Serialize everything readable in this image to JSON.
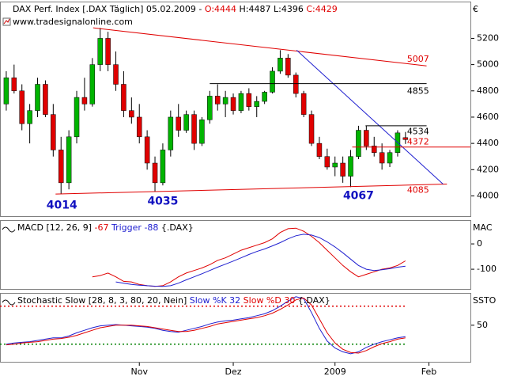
{
  "chart_data": [
    {
      "type": "candlestick",
      "title": [
        {
          "text": "DAX Perf. Index [.DAX  Täglich] 05.02.2009 - ",
          "color": "#000000"
        },
        {
          "text": "O:4444 ",
          "color": "#e00000"
        },
        {
          "text": "H:4487 ",
          "color": "#000000"
        },
        {
          "text": "L:4396 ",
          "color": "#000000"
        },
        {
          "text": "C:4429",
          "color": "#e00000"
        }
      ],
      "watermark": "www.tradesignalonline.com",
      "axis_label": "€",
      "up_color": "#00b400",
      "down_color": "#e00000",
      "x": [
        0,
        1,
        2,
        3,
        4,
        5,
        6,
        7,
        8,
        9,
        10,
        11,
        12,
        13,
        14,
        15,
        16,
        17,
        18,
        19,
        20,
        21,
        22,
        23,
        24,
        25,
        26,
        27,
        28,
        29,
        30,
        31,
        32,
        33,
        34,
        35,
        36,
        37,
        38,
        39,
        40,
        41,
        42,
        43,
        44,
        45,
        46,
        47,
        48,
        49,
        50,
        51
      ],
      "open": [
        4700,
        4900,
        4800,
        4550,
        4650,
        4850,
        4620,
        4350,
        4100,
        4450,
        4750,
        4700,
        5000,
        5200,
        5000,
        4850,
        4650,
        4600,
        4450,
        4250,
        4100,
        4350,
        4600,
        4500,
        4620,
        4400,
        4580,
        4760,
        4700,
        4750,
        4650,
        4780,
        4680,
        4720,
        4790,
        4950,
        5050,
        4920,
        4780,
        4620,
        4400,
        4300,
        4220,
        4250,
        4150,
        4300,
        4500,
        4380,
        4330,
        4250,
        4330,
        4444
      ],
      "high": [
        4950,
        5000,
        4850,
        4700,
        4900,
        4880,
        4700,
        4450,
        4500,
        4800,
        4900,
        5050,
        5280,
        5250,
        5100,
        4950,
        4750,
        4700,
        4500,
        4300,
        4400,
        4650,
        4700,
        4650,
        4650,
        4600,
        4800,
        4850,
        4800,
        4780,
        4800,
        4820,
        4760,
        4800,
        4980,
        5110,
        5080,
        4940,
        4800,
        4650,
        4450,
        4360,
        4300,
        4300,
        4350,
        4534,
        4534,
        4450,
        4400,
        4350,
        4500,
        4487
      ],
      "low": [
        4650,
        4780,
        4500,
        4400,
        4600,
        4600,
        4300,
        4014,
        4050,
        4400,
        4650,
        4680,
        4950,
        4950,
        4800,
        4600,
        4550,
        4400,
        4200,
        4035,
        4080,
        4300,
        4450,
        4480,
        4350,
        4380,
        4550,
        4650,
        4600,
        4620,
        4630,
        4650,
        4600,
        4700,
        4780,
        4930,
        4900,
        4750,
        4600,
        4380,
        4280,
        4200,
        4150,
        4100,
        4067,
        4280,
        4350,
        4300,
        4200,
        4220,
        4300,
        4396
      ],
      "close": [
        4900,
        4800,
        4550,
        4650,
        4850,
        4620,
        4350,
        4100,
        4450,
        4750,
        4700,
        5000,
        5200,
        5000,
        4850,
        4650,
        4600,
        4450,
        4250,
        4100,
        4350,
        4600,
        4500,
        4620,
        4400,
        4580,
        4760,
        4700,
        4750,
        4650,
        4780,
        4680,
        4720,
        4790,
        4950,
        5050,
        4920,
        4780,
        4620,
        4400,
        4300,
        4220,
        4250,
        4150,
        4300,
        4500,
        4380,
        4330,
        4250,
        4330,
        4480,
        4429
      ],
      "xlim": [
        -0.8,
        59.4
      ],
      "ylim": [
        3840,
        5480
      ],
      "yticks": [
        4000,
        4200,
        4400,
        4600,
        4800,
        5000,
        5200
      ],
      "lines": [
        {
          "color": "#e00000",
          "from": [
            6.3,
            4014
          ],
          "to": [
            56.3,
            4090
          ]
        },
        {
          "color": "#e00000",
          "from": [
            11.1,
            5280
          ],
          "to": [
            53.7,
            4990
          ]
        },
        {
          "color": "#2020d0",
          "from": [
            37.1,
            5110
          ],
          "to": [
            55.8,
            4090
          ]
        },
        {
          "color": "#000000",
          "from": [
            26,
            4855
          ],
          "to": [
            53.7,
            4855
          ]
        },
        {
          "color": "#000000",
          "from": [
            45.9,
            4534
          ],
          "to": [
            53.7,
            4534
          ]
        },
        {
          "color": "#e00000",
          "from": [
            44.2,
            4372
          ],
          "to": [
            59.3,
            4372
          ]
        }
      ],
      "annotations": [
        {
          "text": "5007",
          "x": 51.2,
          "y": 5040,
          "color": "#e00000",
          "bold": false
        },
        {
          "text": "4855",
          "x": 51.2,
          "y": 4796,
          "color": "#000000",
          "bold": false
        },
        {
          "text": "4534",
          "x": 51.2,
          "y": 4488,
          "color": "#000000",
          "bold": false
        },
        {
          "text": "4372",
          "x": 51.2,
          "y": 4410,
          "color": "#e00000",
          "bold": false
        },
        {
          "text": "4085",
          "x": 51.2,
          "y": 4042,
          "color": "#e00000",
          "bold": false
        },
        {
          "text": "4014",
          "x": 7.1,
          "y": 3927,
          "color": "#1010c0",
          "bold": true
        },
        {
          "text": "4035",
          "x": 20,
          "y": 3958,
          "color": "#1010c0",
          "bold": true
        },
        {
          "text": "4067",
          "x": 45,
          "y": 4000,
          "color": "#1010c0",
          "bold": true
        }
      ]
    },
    {
      "type": "line",
      "title": [
        {
          "text": "MACD [12, 26, 9] ",
          "color": "#000000"
        },
        {
          "text": "-67 ",
          "color": "#e00000"
        },
        {
          "text": "Trigger ",
          "color": "#2020d0"
        },
        {
          "text": "-88 ",
          "color": "#2020d0"
        },
        {
          "text": "{.DAX}",
          "color": "#000000"
        }
      ],
      "axis_label": "MAC",
      "xlim": [
        -0.8,
        59.4
      ],
      "ylim": [
        -181,
        94
      ],
      "yticks": [
        0,
        -100
      ],
      "series": [
        {
          "color": "#e00000",
          "values": [
            null,
            null,
            null,
            null,
            null,
            null,
            null,
            null,
            null,
            null,
            null,
            -130,
            -125,
            -115,
            -130,
            -148,
            -150,
            -160,
            -165,
            -168,
            -165,
            -150,
            -130,
            -115,
            -105,
            -95,
            -82,
            -65,
            -55,
            -40,
            -25,
            -15,
            -5,
            5,
            20,
            45,
            60,
            62,
            50,
            30,
            5,
            -25,
            -55,
            -85,
            -110,
            -130,
            -120,
            -110,
            -100,
            -95,
            -85,
            -67
          ]
        },
        {
          "color": "#2020d0",
          "values": [
            null,
            null,
            null,
            null,
            null,
            null,
            null,
            null,
            null,
            null,
            null,
            null,
            null,
            null,
            -150,
            -155,
            -160,
            -163,
            -165,
            -167,
            -168,
            -165,
            -155,
            -142,
            -130,
            -118,
            -105,
            -92,
            -80,
            -68,
            -55,
            -42,
            -30,
            -20,
            -8,
            5,
            20,
            32,
            38,
            35,
            25,
            8,
            -12,
            -35,
            -60,
            -85,
            -100,
            -105,
            -102,
            -98,
            -92,
            -88
          ]
        }
      ]
    },
    {
      "type": "line",
      "title": [
        {
          "text": "Stochastic Slow [28, 8, 3, 80, 20, Nein] ",
          "color": "#000000"
        },
        {
          "text": "Slow %K 32 ",
          "color": "#2020d0"
        },
        {
          "text": "Slow %D 30 ",
          "color": "#e00000"
        },
        {
          "text": "{.DAX}",
          "color": "#000000"
        }
      ],
      "axis_label": "SSTO",
      "xlim": [
        -0.8,
        59.4
      ],
      "ylim": [
        -9,
        101
      ],
      "yticks": [
        50
      ],
      "levels": [
        {
          "value": 80,
          "color": "#e00000"
        },
        {
          "value": 20,
          "color": "#008000"
        }
      ],
      "series": [
        {
          "color": "#2020d0",
          "values": [
            20,
            22,
            23,
            24,
            26,
            28,
            30,
            30,
            33,
            38,
            42,
            46,
            49,
            50,
            51,
            50,
            49,
            48,
            47,
            45,
            42,
            40,
            39,
            42,
            45,
            48,
            52,
            55,
            57,
            58,
            60,
            62,
            65,
            68,
            73,
            80,
            88,
            95,
            92,
            70,
            45,
            25,
            14,
            8,
            5,
            8,
            15,
            20,
            24,
            27,
            30,
            32
          ]
        },
        {
          "color": "#e00000",
          "values": [
            19,
            20,
            22,
            23,
            24,
            26,
            28,
            29,
            31,
            34,
            38,
            42,
            46,
            48,
            50,
            50,
            50,
            49,
            48,
            46,
            44,
            42,
            40,
            40,
            42,
            45,
            48,
            52,
            54,
            56,
            58,
            60,
            62,
            65,
            69,
            75,
            82,
            90,
            93,
            82,
            60,
            38,
            22,
            12,
            7,
            6,
            10,
            16,
            21,
            24,
            28,
            30
          ]
        }
      ],
      "xticks": [
        {
          "value": 17,
          "label": "Nov"
        },
        {
          "value": 29,
          "label": "Dez"
        },
        {
          "value": 42,
          "label": "2009"
        },
        {
          "value": 54,
          "label": "Feb"
        }
      ]
    }
  ]
}
